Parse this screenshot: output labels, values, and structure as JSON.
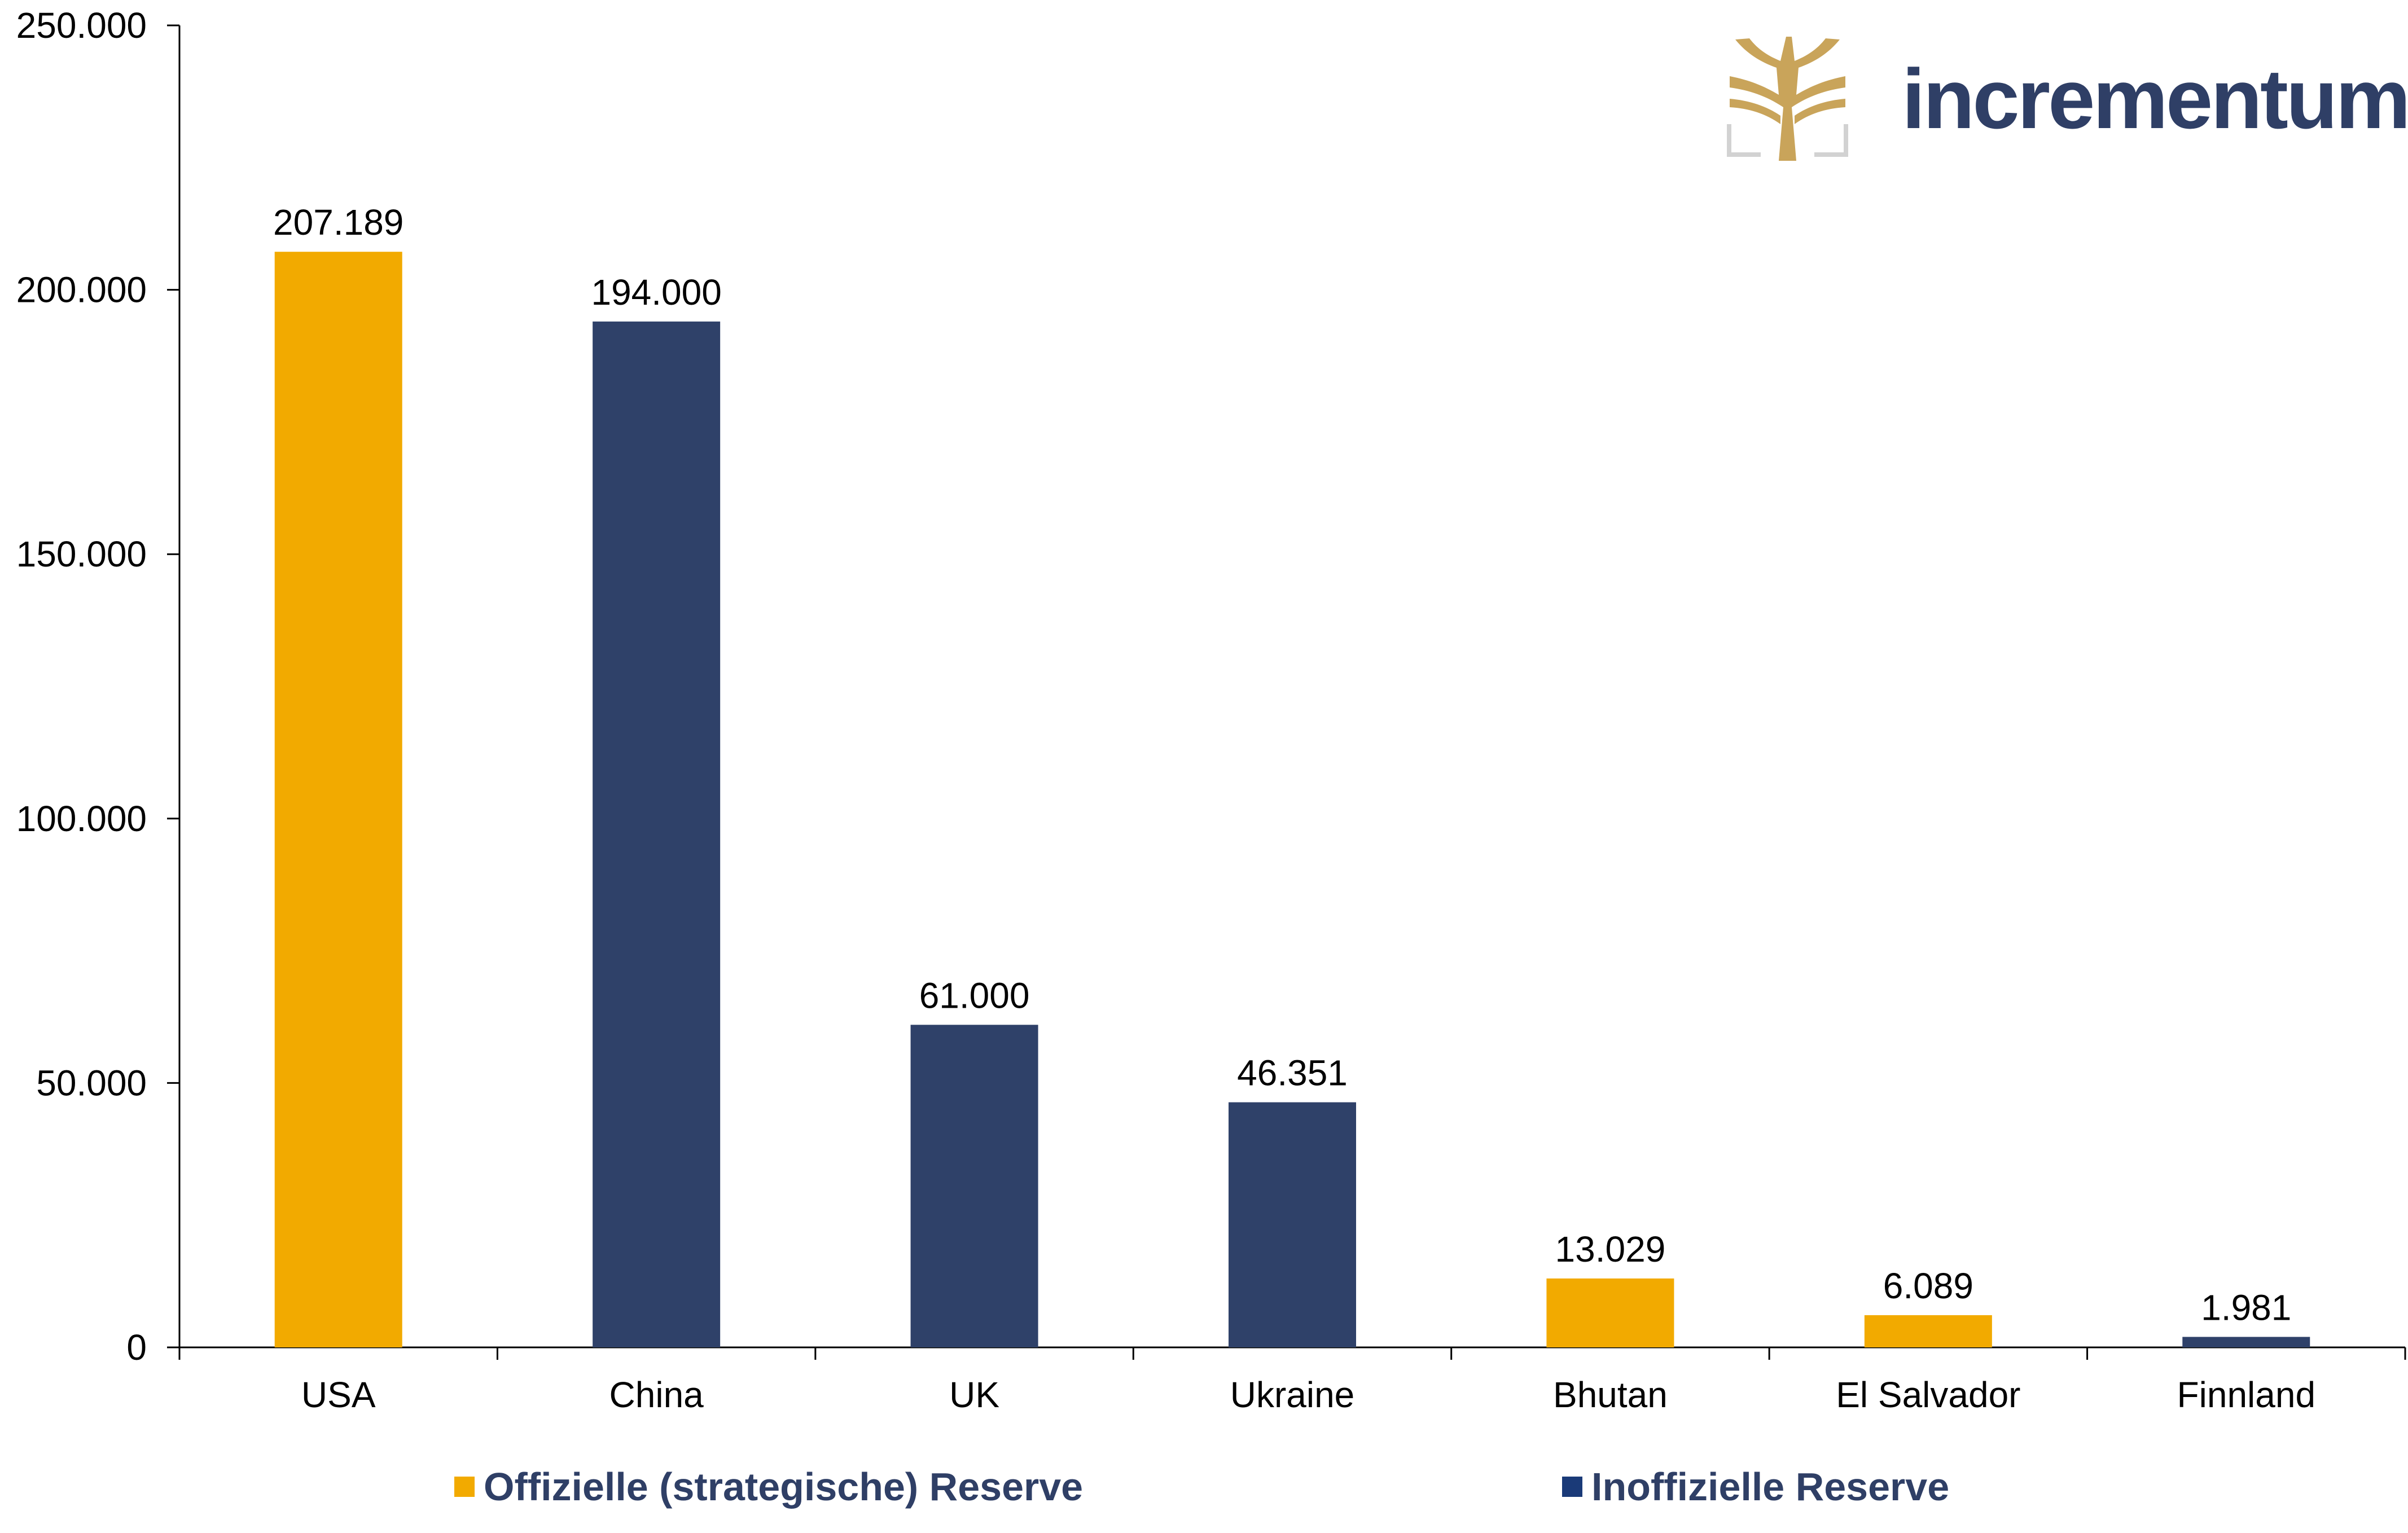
{
  "logo": {
    "text": "incrementum"
  },
  "colors": {
    "official": "#F2AA00",
    "unofficial": "#2F4169",
    "legend_unofficial_swatch": "#1A3A78",
    "axis": "#000000"
  },
  "legend": {
    "official": "Offizielle (strategische) Reserve",
    "unofficial": "Inoffizielle Reserve"
  },
  "chart_data": {
    "type": "bar",
    "categories": [
      "USA",
      "China",
      "UK",
      "Ukraine",
      "Bhutan",
      "El Salvador",
      "Finnland"
    ],
    "values": [
      207189,
      194000,
      61000,
      46351,
      13029,
      6089,
      1981
    ],
    "value_labels": [
      "207.189",
      "194.000",
      "61.000",
      "46.351",
      "13.029",
      "6.089",
      "1.981"
    ],
    "reserve_type": [
      "official",
      "unofficial",
      "unofficial",
      "unofficial",
      "official",
      "official",
      "unofficial"
    ],
    "ylim": [
      0,
      250000
    ],
    "yticks": [
      0,
      50000,
      100000,
      150000,
      200000,
      250000
    ],
    "ytick_labels": [
      "0",
      "50.000",
      "100.000",
      "150.000",
      "200.000",
      "250.000"
    ],
    "grid": false,
    "legend_position": "bottom"
  }
}
